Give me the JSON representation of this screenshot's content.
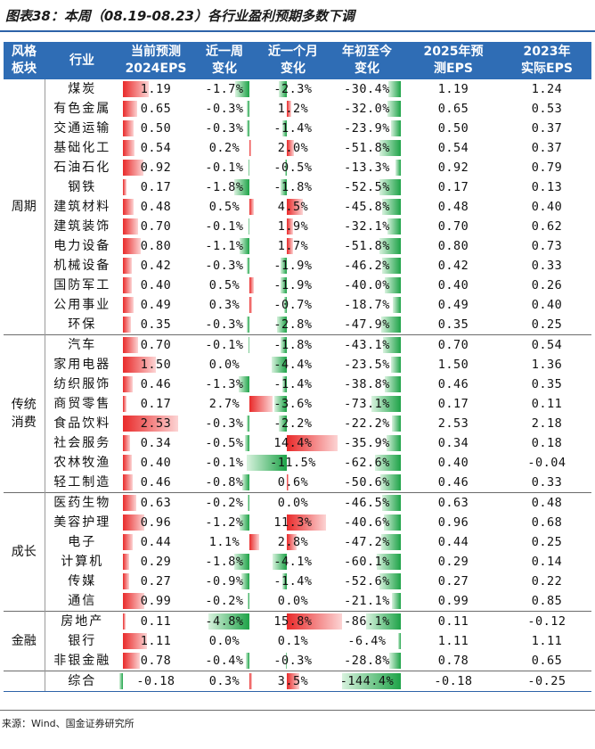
{
  "title": "图表38：本周（08.19-08.23）各行业盈利预期多数下调",
  "source": "来源：Wind、国金证券研究所",
  "headers": {
    "sector": "风格板块",
    "industry": "行业",
    "eps2024": "当前预测2024EPS",
    "week": "近一周变化",
    "month": "近一个月变化",
    "ytd": "年初至今变化",
    "eps2025": "2025年预测EPS",
    "eps2023": "2023年实际EPS"
  },
  "colors": {
    "header_bg": "#2f6db5",
    "positive_bar": "#e92a2a",
    "negative_bar": "#1ea348"
  },
  "scales": {
    "eps_max": 2.53,
    "week_max": 4.8,
    "month_max": 15.8,
    "ytd_max": 144.4
  },
  "groups": [
    {
      "sector": "周期",
      "rows": [
        {
          "industry": "煤炭",
          "eps2024": "1.19",
          "eps2024_v": 1.19,
          "week": "-1.7%",
          "week_v": -1.7,
          "month": "-2.3%",
          "month_v": -2.3,
          "ytd": "-30.4%",
          "ytd_v": -30.4,
          "eps2025": "1.19",
          "eps2023": "1.24"
        },
        {
          "industry": "有色金属",
          "eps2024": "0.65",
          "eps2024_v": 0.65,
          "week": "-0.3%",
          "week_v": -0.3,
          "month": "1.2%",
          "month_v": 1.2,
          "ytd": "-32.0%",
          "ytd_v": -32.0,
          "eps2025": "0.65",
          "eps2023": "0.53"
        },
        {
          "industry": "交通运输",
          "eps2024": "0.50",
          "eps2024_v": 0.5,
          "week": "-0.3%",
          "week_v": -0.3,
          "month": "-1.4%",
          "month_v": -1.4,
          "ytd": "-23.9%",
          "ytd_v": -23.9,
          "eps2025": "0.50",
          "eps2023": "0.37"
        },
        {
          "industry": "基础化工",
          "eps2024": "0.54",
          "eps2024_v": 0.54,
          "week": "0.2%",
          "week_v": 0.2,
          "month": "2.0%",
          "month_v": 2.0,
          "ytd": "-51.8%",
          "ytd_v": -51.8,
          "eps2025": "0.54",
          "eps2023": "0.37"
        },
        {
          "industry": "石油石化",
          "eps2024": "0.92",
          "eps2024_v": 0.92,
          "week": "-0.1%",
          "week_v": -0.1,
          "month": "-0.5%",
          "month_v": -0.5,
          "ytd": "-13.3%",
          "ytd_v": -13.3,
          "eps2025": "0.92",
          "eps2023": "0.79"
        },
        {
          "industry": "钢铁",
          "eps2024": "0.17",
          "eps2024_v": 0.17,
          "week": "-1.8%",
          "week_v": -1.8,
          "month": "-1.8%",
          "month_v": -1.8,
          "ytd": "-52.5%",
          "ytd_v": -52.5,
          "eps2025": "0.17",
          "eps2023": "0.13"
        },
        {
          "industry": "建筑材料",
          "eps2024": "0.48",
          "eps2024_v": 0.48,
          "week": "0.5%",
          "week_v": 0.5,
          "month": "4.5%",
          "month_v": 4.5,
          "ytd": "-45.8%",
          "ytd_v": -45.8,
          "eps2025": "0.48",
          "eps2023": "0.40"
        },
        {
          "industry": "建筑装饰",
          "eps2024": "0.70",
          "eps2024_v": 0.7,
          "week": "-0.1%",
          "week_v": -0.1,
          "month": "1.9%",
          "month_v": 1.9,
          "ytd": "-32.1%",
          "ytd_v": -32.1,
          "eps2025": "0.70",
          "eps2023": "0.62"
        },
        {
          "industry": "电力设备",
          "eps2024": "0.80",
          "eps2024_v": 0.8,
          "week": "-1.1%",
          "week_v": -1.1,
          "month": "1.7%",
          "month_v": 1.7,
          "ytd": "-51.8%",
          "ytd_v": -51.8,
          "eps2025": "0.80",
          "eps2023": "0.73"
        },
        {
          "industry": "机械设备",
          "eps2024": "0.42",
          "eps2024_v": 0.42,
          "week": "-0.3%",
          "week_v": -0.3,
          "month": "-1.9%",
          "month_v": -1.9,
          "ytd": "-46.2%",
          "ytd_v": -46.2,
          "eps2025": "0.42",
          "eps2023": "0.33"
        },
        {
          "industry": "国防军工",
          "eps2024": "0.40",
          "eps2024_v": 0.4,
          "week": "0.5%",
          "week_v": 0.5,
          "month": "-1.9%",
          "month_v": -1.9,
          "ytd": "-40.0%",
          "ytd_v": -40.0,
          "eps2025": "0.40",
          "eps2023": "0.26"
        },
        {
          "industry": "公用事业",
          "eps2024": "0.49",
          "eps2024_v": 0.49,
          "week": "0.3%",
          "week_v": 0.3,
          "month": "-0.7%",
          "month_v": -0.7,
          "ytd": "-18.7%",
          "ytd_v": -18.7,
          "eps2025": "0.49",
          "eps2023": "0.40"
        },
        {
          "industry": "环保",
          "eps2024": "0.35",
          "eps2024_v": 0.35,
          "week": "-0.3%",
          "week_v": -0.3,
          "month": "-2.8%",
          "month_v": -2.8,
          "ytd": "-47.9%",
          "ytd_v": -47.9,
          "eps2025": "0.35",
          "eps2023": "0.25"
        }
      ]
    },
    {
      "sector": "传统消费",
      "rows": [
        {
          "industry": "汽车",
          "eps2024": "0.70",
          "eps2024_v": 0.7,
          "week": "-0.1%",
          "week_v": -0.1,
          "month": "-1.8%",
          "month_v": -1.8,
          "ytd": "-43.1%",
          "ytd_v": -43.1,
          "eps2025": "0.70",
          "eps2023": "0.54"
        },
        {
          "industry": "家用电器",
          "eps2024": "1.50",
          "eps2024_v": 1.5,
          "week": "0.0%",
          "week_v": 0.0,
          "month": "-4.4%",
          "month_v": -4.4,
          "ytd": "-23.5%",
          "ytd_v": -23.5,
          "eps2025": "1.50",
          "eps2023": "1.36"
        },
        {
          "industry": "纺织服饰",
          "eps2024": "0.46",
          "eps2024_v": 0.46,
          "week": "-1.3%",
          "week_v": -1.3,
          "month": "-1.4%",
          "month_v": -1.4,
          "ytd": "-38.8%",
          "ytd_v": -38.8,
          "eps2025": "0.46",
          "eps2023": "0.35"
        },
        {
          "industry": "商贸零售",
          "eps2024": "0.17",
          "eps2024_v": 0.17,
          "week": "2.7%",
          "week_v": 2.7,
          "month": "-3.6%",
          "month_v": -3.6,
          "ytd": "-73.1%",
          "ytd_v": -73.1,
          "eps2025": "0.17",
          "eps2023": "0.11"
        },
        {
          "industry": "食品饮料",
          "eps2024": "2.53",
          "eps2024_v": 2.53,
          "week": "-0.3%",
          "week_v": -0.3,
          "month": "-2.2%",
          "month_v": -2.2,
          "ytd": "-22.2%",
          "ytd_v": -22.2,
          "eps2025": "2.53",
          "eps2023": "2.18"
        },
        {
          "industry": "社会服务",
          "eps2024": "0.34",
          "eps2024_v": 0.34,
          "week": "-0.5%",
          "week_v": -0.5,
          "month": "14.4%",
          "month_v": 14.4,
          "ytd": "-35.9%",
          "ytd_v": -35.9,
          "eps2025": "0.34",
          "eps2023": "0.18"
        },
        {
          "industry": "农林牧渔",
          "eps2024": "0.40",
          "eps2024_v": 0.4,
          "week": "-0.1%",
          "week_v": -0.1,
          "month": "-11.5%",
          "month_v": -11.5,
          "ytd": "-62.6%",
          "ytd_v": -62.6,
          "eps2025": "0.40",
          "eps2023": "-0.04"
        },
        {
          "industry": "轻工制造",
          "eps2024": "0.46",
          "eps2024_v": 0.46,
          "week": "-0.8%",
          "week_v": -0.8,
          "month": "0.6%",
          "month_v": 0.6,
          "ytd": "-50.6%",
          "ytd_v": -50.6,
          "eps2025": "0.46",
          "eps2023": "0.33"
        }
      ]
    },
    {
      "sector": "成长",
      "rows": [
        {
          "industry": "医药生物",
          "eps2024": "0.63",
          "eps2024_v": 0.63,
          "week": "-0.2%",
          "week_v": -0.2,
          "month": "0.0%",
          "month_v": 0.0,
          "ytd": "-46.5%",
          "ytd_v": -46.5,
          "eps2025": "0.63",
          "eps2023": "0.48"
        },
        {
          "industry": "美容护理",
          "eps2024": "0.96",
          "eps2024_v": 0.96,
          "week": "-1.2%",
          "week_v": -1.2,
          "month": "11.3%",
          "month_v": 11.3,
          "ytd": "-40.6%",
          "ytd_v": -40.6,
          "eps2025": "0.96",
          "eps2023": "0.68"
        },
        {
          "industry": "电子",
          "eps2024": "0.44",
          "eps2024_v": 0.44,
          "week": "1.1%",
          "week_v": 1.1,
          "month": "2.8%",
          "month_v": 2.8,
          "ytd": "-47.2%",
          "ytd_v": -47.2,
          "eps2025": "0.44",
          "eps2023": "0.25"
        },
        {
          "industry": "计算机",
          "eps2024": "0.29",
          "eps2024_v": 0.29,
          "week": "-1.8%",
          "week_v": -1.8,
          "month": "-4.1%",
          "month_v": -4.1,
          "ytd": "-60.1%",
          "ytd_v": -60.1,
          "eps2025": "0.29",
          "eps2023": "0.14"
        },
        {
          "industry": "传媒",
          "eps2024": "0.27",
          "eps2024_v": 0.27,
          "week": "-0.9%",
          "week_v": -0.9,
          "month": "-1.4%",
          "month_v": -1.4,
          "ytd": "-52.6%",
          "ytd_v": -52.6,
          "eps2025": "0.27",
          "eps2023": "0.22"
        },
        {
          "industry": "通信",
          "eps2024": "0.99",
          "eps2024_v": 0.99,
          "week": "-0.2%",
          "week_v": -0.2,
          "month": "0.0%",
          "month_v": 0.0,
          "ytd": "-21.1%",
          "ytd_v": -21.1,
          "eps2025": "0.99",
          "eps2023": "0.85"
        }
      ]
    },
    {
      "sector": "金融",
      "rows": [
        {
          "industry": "房地产",
          "eps2024": "0.11",
          "eps2024_v": 0.11,
          "week": "-4.8%",
          "week_v": -4.8,
          "month": "15.8%",
          "month_v": 15.8,
          "ytd": "-86.1%",
          "ytd_v": -86.1,
          "eps2025": "0.11",
          "eps2023": "-0.12"
        },
        {
          "industry": "银行",
          "eps2024": "1.11",
          "eps2024_v": 1.11,
          "week": "0.0%",
          "week_v": 0.0,
          "month": "0.1%",
          "month_v": 0.1,
          "ytd": "-6.4%",
          "ytd_v": -6.4,
          "eps2025": "1.11",
          "eps2023": "1.11"
        },
        {
          "industry": "非银金融",
          "eps2024": "0.78",
          "eps2024_v": 0.78,
          "week": "-0.4%",
          "week_v": -0.4,
          "month": "-0.3%",
          "month_v": -0.3,
          "ytd": "-28.8%",
          "ytd_v": -28.8,
          "eps2025": "0.78",
          "eps2023": "0.65"
        }
      ]
    },
    {
      "sector": "",
      "total": true,
      "rows": [
        {
          "industry": "综合",
          "eps2024": "-0.18",
          "eps2024_v": -0.18,
          "week": "0.3%",
          "week_v": 0.3,
          "month": "3.5%",
          "month_v": 3.5,
          "ytd": "-144.4%",
          "ytd_v": -144.4,
          "eps2025": "-0.18",
          "eps2023": "-0.25"
        }
      ]
    }
  ]
}
